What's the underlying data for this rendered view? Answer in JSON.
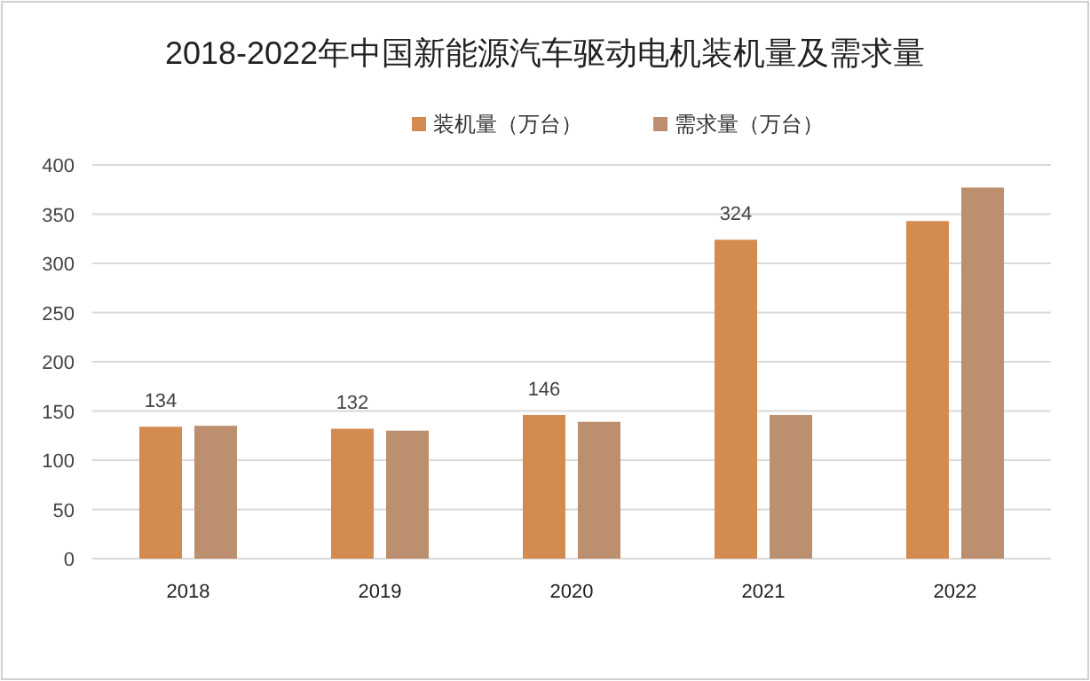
{
  "chart_data": {
    "type": "bar",
    "title": "2018-2022年中国新能源汽车驱动电机装机量及需求量",
    "categories": [
      "2018",
      "2019",
      "2020",
      "2021",
      "2022"
    ],
    "series": [
      {
        "name": "装机量（万台）",
        "color": "#d38b4f",
        "values": [
          134,
          132,
          146,
          324,
          343
        ],
        "value_labels": [
          "134",
          "132",
          "146",
          "324",
          null
        ]
      },
      {
        "name": "需求量（万台）",
        "color": "#bc8f6f",
        "values": [
          135,
          130,
          139,
          146,
          377
        ]
      }
    ],
    "ylim": [
      0,
      400
    ],
    "yticks": [
      0,
      50,
      100,
      150,
      200,
      250,
      300,
      350,
      400
    ],
    "grid": "y",
    "legend": "top"
  }
}
